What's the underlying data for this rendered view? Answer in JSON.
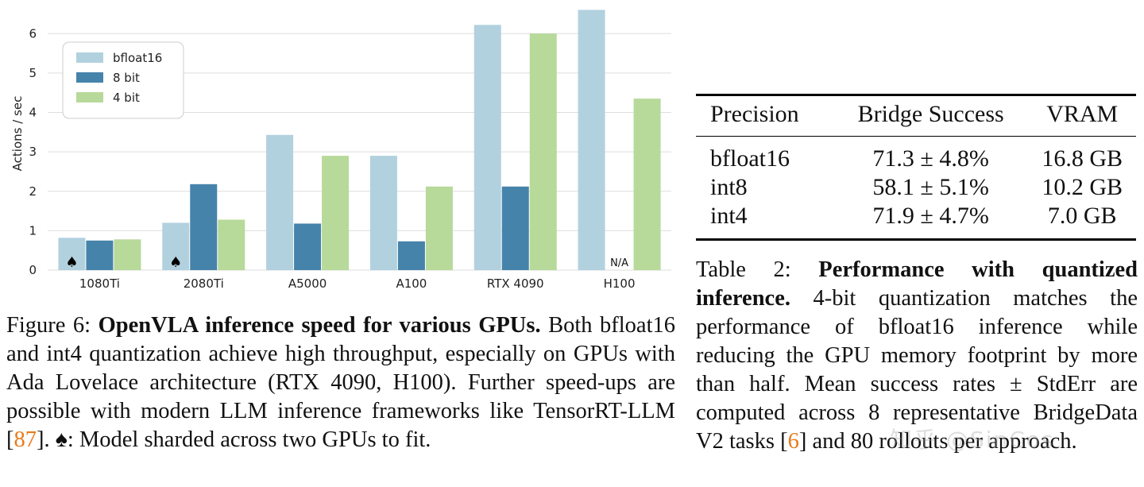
{
  "chart_data": {
    "type": "bar",
    "categories": [
      "1080Ti",
      "2080Ti",
      "A5000",
      "A100",
      "RTX 4090",
      "H100"
    ],
    "series": [
      {
        "name": "bfloat16",
        "color": "#b2d1df",
        "values": [
          0.82,
          1.2,
          3.43,
          2.9,
          6.22,
          6.6
        ]
      },
      {
        "name": "8 bit",
        "color": "#4683aa",
        "values": [
          0.75,
          2.18,
          1.18,
          0.73,
          2.12,
          null
        ]
      },
      {
        "name": "4 bit",
        "color": "#b7d99a",
        "values": [
          0.78,
          1.28,
          2.9,
          2.12,
          6.0,
          4.35
        ]
      }
    ],
    "ylabel": "Actions / sec",
    "xlabel": "",
    "ylim": [
      0,
      6.65
    ],
    "yticks": [
      0,
      1,
      2,
      3,
      4,
      5,
      6
    ],
    "legend": "top-left",
    "grid": "horizontal",
    "sharded_marker": "♠",
    "sharded_categories": [
      "1080Ti",
      "2080Ti"
    ],
    "na_label": "N/A"
  },
  "table": {
    "headers": [
      "Precision",
      "Bridge Success",
      "VRAM"
    ],
    "rows": [
      [
        "bfloat16",
        "71.3 ± 4.8%",
        "16.8 GB"
      ],
      [
        "int8",
        "58.1 ± 5.1%",
        "10.2 GB"
      ],
      [
        "int4",
        "71.9 ± 4.7%",
        "7.0 GB"
      ]
    ]
  },
  "figure_caption": {
    "label": "Figure 6:  ",
    "bold": "OpenVLA inference speed for various GPUs.",
    "text1": " Both bfloat16 and int4 quantization achieve high throughput, especially on GPUs with Ada Lovelace architecture (RTX 4090, H100). Further speed-ups are possible with modern LLM inference frameworks like TensorRT-LLM [",
    "ref": "87",
    "text2": "]. ♠: Model sharded across two GPUs to fit."
  },
  "table_caption": {
    "label": "Table 2: ",
    "bold": "Performance with quantized inference.",
    "text1": " 4-bit quantization matches the performance of bfloat16 inference while reducing the GPU memory footprint by more than half. Mean success rates ± StdErr are computed across 8 representative BridgeData V2 tasks [",
    "ref": "6",
    "text2": "] and 80 rollouts per approach."
  },
  "watermark": "知乎 @SinCos"
}
